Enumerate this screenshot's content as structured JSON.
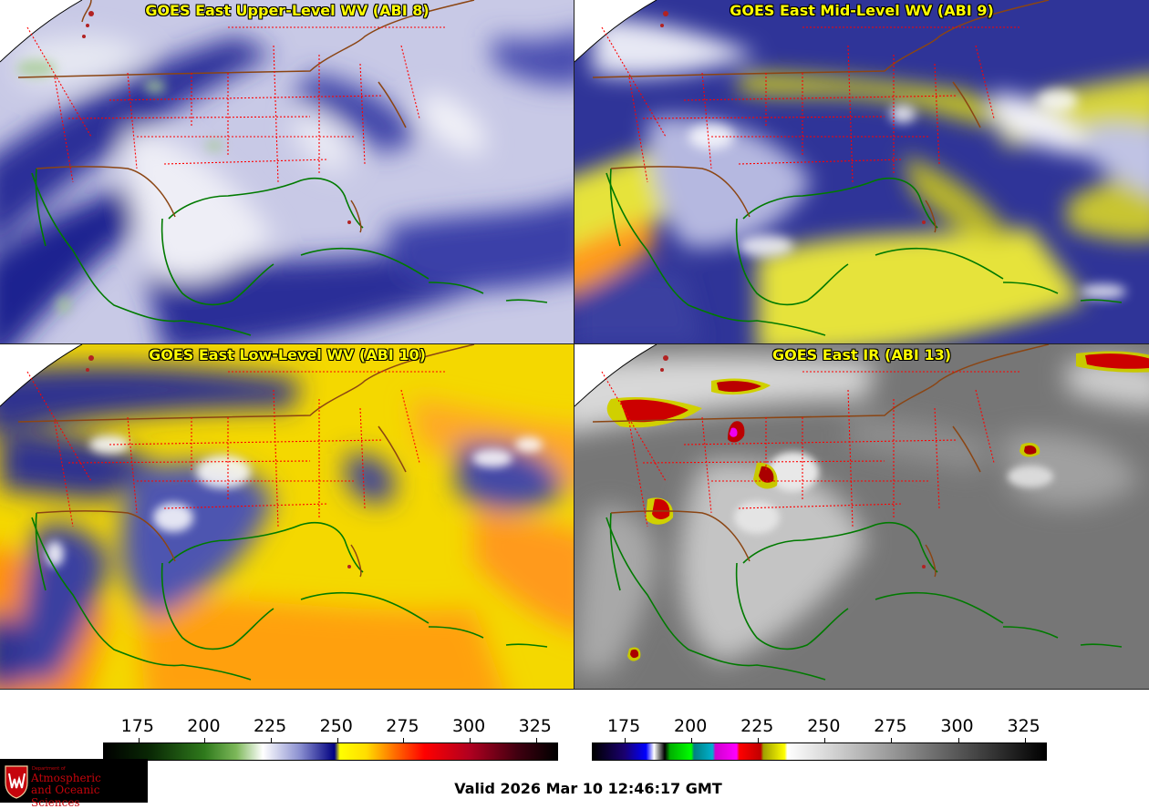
{
  "panels": [
    {
      "id": "p1",
      "title": "GOES East Upper-Level WV (ABI 8)",
      "palette": "wv_upper"
    },
    {
      "id": "p2",
      "title": "GOES East Mid-Level WV (ABI 9)",
      "palette": "wv_mid"
    },
    {
      "id": "p3",
      "title": "GOES East Low-Level WV (ABI 10)",
      "palette": "wv_low"
    },
    {
      "id": "p4",
      "title": "GOES East IR (ABI 13)",
      "palette": "ir"
    }
  ],
  "colorbars": {
    "wv": {
      "ticks": [
        "175",
        "200",
        "225",
        "250",
        "275",
        "300",
        "325"
      ],
      "range": [
        162,
        333
      ],
      "stops": [
        {
          "v": 162,
          "c": "#000000"
        },
        {
          "v": 180,
          "c": "#0a2a05"
        },
        {
          "v": 200,
          "c": "#2f7a1c"
        },
        {
          "v": 212,
          "c": "#7db85a"
        },
        {
          "v": 222,
          "c": "#ffffff"
        },
        {
          "v": 236,
          "c": "#8a8fd0"
        },
        {
          "v": 249,
          "c": "#000080"
        },
        {
          "v": 251,
          "c": "#ffff00"
        },
        {
          "v": 261,
          "c": "#ffdd00"
        },
        {
          "v": 272,
          "c": "#ff6a00"
        },
        {
          "v": 283,
          "c": "#ff0000"
        },
        {
          "v": 300,
          "c": "#b00020"
        },
        {
          "v": 318,
          "c": "#400010"
        },
        {
          "v": 333,
          "c": "#000000"
        }
      ]
    },
    "ir": {
      "ticks": [
        "175",
        "200",
        "225",
        "250",
        "275",
        "300",
        "325"
      ],
      "range": [
        163,
        333
      ],
      "stops": [
        {
          "v": 163,
          "c": "#000000"
        },
        {
          "v": 175,
          "c": "#1a0070"
        },
        {
          "v": 183,
          "c": "#0000ff"
        },
        {
          "v": 186,
          "c": "#ffffff"
        },
        {
          "v": 190,
          "c": "#000000"
        },
        {
          "v": 192,
          "c": "#00b000"
        },
        {
          "v": 200,
          "c": "#00ff00"
        },
        {
          "v": 201,
          "c": "#008080"
        },
        {
          "v": 208,
          "c": "#00b0d0"
        },
        {
          "v": 209,
          "c": "#d000d0"
        },
        {
          "v": 217,
          "c": "#ff00ff"
        },
        {
          "v": 218,
          "c": "#ff0000"
        },
        {
          "v": 226,
          "c": "#c00000"
        },
        {
          "v": 227,
          "c": "#a0a000"
        },
        {
          "v": 235,
          "c": "#ffff00"
        },
        {
          "v": 236,
          "c": "#ffffff"
        },
        {
          "v": 333,
          "c": "#000000"
        }
      ]
    }
  },
  "valid_time": "Valid 2026 Mar 10 12:46:17 GMT",
  "logo": {
    "department": "Department of",
    "line1": "Atmospheric",
    "line2": "and Oceanic Sciences",
    "seal_letter": "W",
    "color": "#c5050c"
  }
}
